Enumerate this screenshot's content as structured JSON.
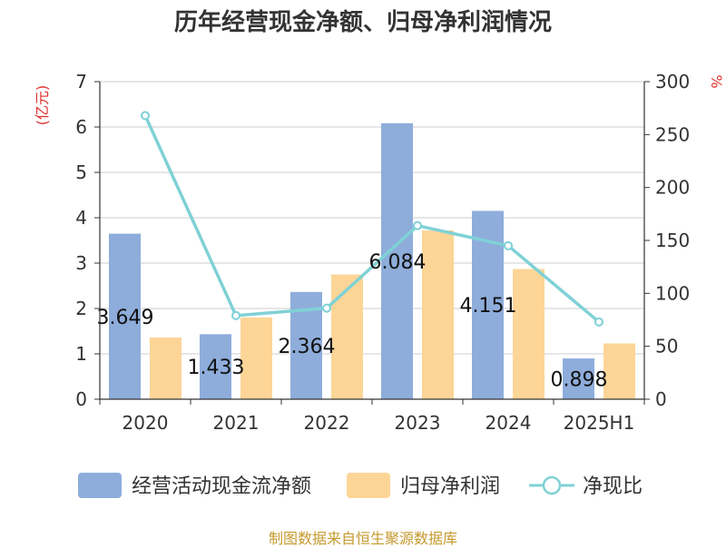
{
  "chart_data": {
    "type": "bar",
    "title": "历年经营现金净额、归母净利润情况",
    "source": "制图数据来自恒生聚源数据库",
    "categories": [
      "2020",
      "2021",
      "2022",
      "2023",
      "2024",
      "2025H1"
    ],
    "left_axis": {
      "unit": "(亿元)",
      "ylim": [
        0,
        7
      ],
      "ticks": [
        "0",
        "1",
        "2",
        "3",
        "4",
        "5",
        "6",
        "7"
      ]
    },
    "right_axis": {
      "unit": "%",
      "ylim": [
        0,
        300
      ],
      "ticks": [
        "0",
        "50",
        "100",
        "150",
        "200",
        "250",
        "300"
      ]
    },
    "grid": true,
    "legend_position": "bottom",
    "series": [
      {
        "name": "经营活动现金流净额",
        "type": "bar",
        "axis": "left",
        "color": "#8eaddb",
        "values": [
          3.649,
          1.433,
          2.364,
          6.084,
          4.151,
          0.898
        ],
        "labels": [
          "3.649",
          "1.433",
          "2.364",
          "6.084",
          "4.151",
          "0.898"
        ]
      },
      {
        "name": "归母净利润",
        "type": "bar",
        "axis": "left",
        "color": "#fdd597",
        "values": [
          1.36,
          1.8,
          2.75,
          3.72,
          2.87,
          1.23
        ]
      },
      {
        "name": "净现比",
        "type": "line",
        "axis": "right",
        "color": "#7fd1d6",
        "values": [
          268,
          79,
          86,
          164,
          145,
          73
        ]
      }
    ]
  }
}
